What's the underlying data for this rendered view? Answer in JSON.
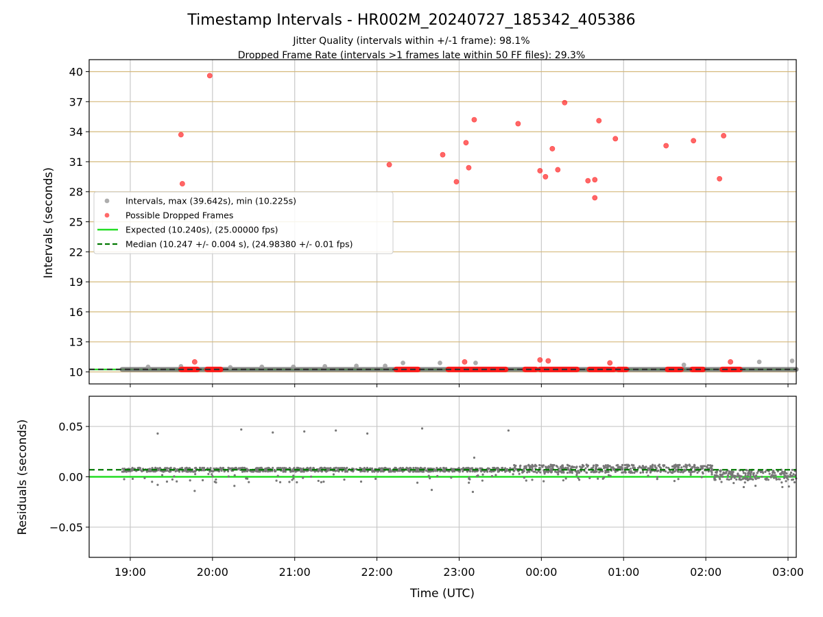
{
  "chart_data": [
    {
      "type": "scatter",
      "title": "Timestamp Intervals - HR002M_20240727_185342_405386",
      "subtitle_lines": [
        "Jitter Quality (intervals within +/-1 frame): 98.1%",
        "Dropped Frame Rate (intervals >1 frames late within 50 FF files): 29.3%"
      ],
      "ylabel": "Intervals (seconds)",
      "xlim": [
        "18:30",
        "03:06"
      ],
      "ylim": [
        8.8,
        41.2
      ],
      "yticks": [
        10,
        13,
        16,
        19,
        22,
        25,
        28,
        31,
        34,
        37,
        40
      ],
      "ytick_labels": [
        "10",
        "13",
        "16",
        "19",
        "22",
        "25",
        "28",
        "31",
        "34",
        "37",
        "40"
      ],
      "grid": {
        "x": true,
        "y": true,
        "y_color": "#d4b87a"
      },
      "legend": {
        "placement": "center-left",
        "entries": [
          {
            "label": "Intervals, max (39.642s), min (10.225s)",
            "kind": "marker",
            "color": "#999999"
          },
          {
            "label": "Possible Dropped Frames",
            "kind": "marker",
            "color": "#ff4444"
          },
          {
            "label": "Expected (10.240s), (25.00000 fps)",
            "kind": "line",
            "color": "#22dd22"
          },
          {
            "label": "Median (10.247 +/- 0.004 s), (24.98380 +/- 0.01 fps)",
            "kind": "dashed",
            "color": "#007700"
          }
        ]
      },
      "expected_line": {
        "value": 10.24,
        "color": "#22dd22"
      },
      "median_line": {
        "value": 10.247,
        "color": "#007700"
      },
      "intervals_baseline": {
        "x_start": "18:54",
        "x_end": "03:06",
        "value": 10.25,
        "color": "#666666"
      },
      "intervals_outliers": [
        {
          "x": "19:13",
          "y": 10.5
        },
        {
          "x": "19:37",
          "y": 10.55
        },
        {
          "x": "20:13",
          "y": 10.45
        },
        {
          "x": "20:36",
          "y": 10.5
        },
        {
          "x": "20:59",
          "y": 10.5
        },
        {
          "x": "21:22",
          "y": 10.55
        },
        {
          "x": "21:45",
          "y": 10.6
        },
        {
          "x": "22:06",
          "y": 10.6
        },
        {
          "x": "22:19",
          "y": 10.9
        },
        {
          "x": "22:46",
          "y": 10.9
        },
        {
          "x": "23:12",
          "y": 10.9
        },
        {
          "x": "01:44",
          "y": 10.7
        },
        {
          "x": "02:39",
          "y": 11.0
        },
        {
          "x": "03:03",
          "y": 11.1
        }
      ],
      "dropped_frames": [
        {
          "x": "19:37",
          "y": 33.7
        },
        {
          "x": "19:38",
          "y": 28.8
        },
        {
          "x": "19:58",
          "y": 39.6
        },
        {
          "x": "19:47",
          "y": 11.0
        },
        {
          "x": "22:09",
          "y": 30.7
        },
        {
          "x": "22:48",
          "y": 31.7
        },
        {
          "x": "22:58",
          "y": 29.0
        },
        {
          "x": "23:05",
          "y": 32.9
        },
        {
          "x": "23:07",
          "y": 30.4
        },
        {
          "x": "23:11",
          "y": 35.2
        },
        {
          "x": "23:04",
          "y": 11.0
        },
        {
          "x": "23:43",
          "y": 34.8
        },
        {
          "x": "23:59",
          "y": 30.1
        },
        {
          "x": "00:03",
          "y": 29.5
        },
        {
          "x": "00:08",
          "y": 32.3
        },
        {
          "x": "00:12",
          "y": 30.2
        },
        {
          "x": "00:17",
          "y": 36.9
        },
        {
          "x": "00:34",
          "y": 29.1
        },
        {
          "x": "00:39",
          "y": 29.2
        },
        {
          "x": "00:39",
          "y": 27.4
        },
        {
          "x": "00:42",
          "y": 35.1
        },
        {
          "x": "00:54",
          "y": 33.3
        },
        {
          "x": "01:31",
          "y": 32.6
        },
        {
          "x": "01:51",
          "y": 33.1
        },
        {
          "x": "02:10",
          "y": 29.3
        },
        {
          "x": "02:13",
          "y": 33.6
        },
        {
          "x": "23:59",
          "y": 11.2
        },
        {
          "x": "00:05",
          "y": 11.1
        },
        {
          "x": "00:50",
          "y": 10.9
        },
        {
          "x": "02:18",
          "y": 11.0
        }
      ],
      "dropped_frame_clusters": [
        {
          "x_start": "19:37",
          "x_end": "19:49",
          "y": 10.25
        },
        {
          "x_start": "19:56",
          "x_end": "20:06",
          "y": 10.25
        },
        {
          "x_start": "22:14",
          "x_end": "22:30",
          "y": 10.25
        },
        {
          "x_start": "22:52",
          "x_end": "23:34",
          "y": 10.25
        },
        {
          "x_start": "23:48",
          "x_end": "23:56",
          "y": 10.25
        },
        {
          "x_start": "23:59",
          "x_end": "00:26",
          "y": 10.25
        },
        {
          "x_start": "00:35",
          "x_end": "00:53",
          "y": 10.25
        },
        {
          "x_start": "00:56",
          "x_end": "01:02",
          "y": 10.25
        },
        {
          "x_start": "01:32",
          "x_end": "01:42",
          "y": 10.25
        },
        {
          "x_start": "01:50",
          "x_end": "01:58",
          "y": 10.25
        },
        {
          "x_start": "02:12",
          "x_end": "02:25",
          "y": 10.25
        }
      ]
    },
    {
      "type": "scatter",
      "ylabel": "Residuals (seconds)",
      "xlabel": "Time (UTC)",
      "xlim": [
        "18:30",
        "03:06"
      ],
      "ylim": [
        -0.08,
        0.08
      ],
      "yticks": [
        -0.05,
        0.0,
        0.05
      ],
      "ytick_labels": [
        "−0.05",
        "0.00",
        "0.05"
      ],
      "xticks": [
        "19:00",
        "20:00",
        "21:00",
        "22:00",
        "23:00",
        "00:00",
        "01:00",
        "02:00",
        "03:00"
      ],
      "grid": {
        "x": true,
        "y": true
      },
      "expected_line": {
        "value": 0.0,
        "color": "#22dd22"
      },
      "median_line": {
        "value": 0.007,
        "color": "#007700"
      },
      "residual_outliers": [
        {
          "x": "19:20",
          "y": 0.043
        },
        {
          "x": "20:21",
          "y": 0.047
        },
        {
          "x": "20:44",
          "y": 0.044
        },
        {
          "x": "21:07",
          "y": 0.045
        },
        {
          "x": "21:30",
          "y": 0.046
        },
        {
          "x": "21:53",
          "y": 0.043
        },
        {
          "x": "22:33",
          "y": 0.048
        },
        {
          "x": "23:36",
          "y": 0.046
        },
        {
          "x": "23:11",
          "y": 0.019
        },
        {
          "x": "19:47",
          "y": -0.014
        },
        {
          "x": "20:16",
          "y": -0.009
        },
        {
          "x": "22:40",
          "y": -0.013
        },
        {
          "x": "23:10",
          "y": -0.015
        },
        {
          "x": "19:20",
          "y": -0.008
        }
      ],
      "residual_bands": [
        {
          "x_start": "18:54",
          "x_end": "23:40",
          "center": 0.007,
          "spread": 0.002
        },
        {
          "x_start": "23:40",
          "x_end": "02:05",
          "center": 0.008,
          "spread": 0.004
        },
        {
          "x_start": "02:05",
          "x_end": "03:06",
          "center": 0.002,
          "spread": 0.005
        }
      ]
    }
  ]
}
